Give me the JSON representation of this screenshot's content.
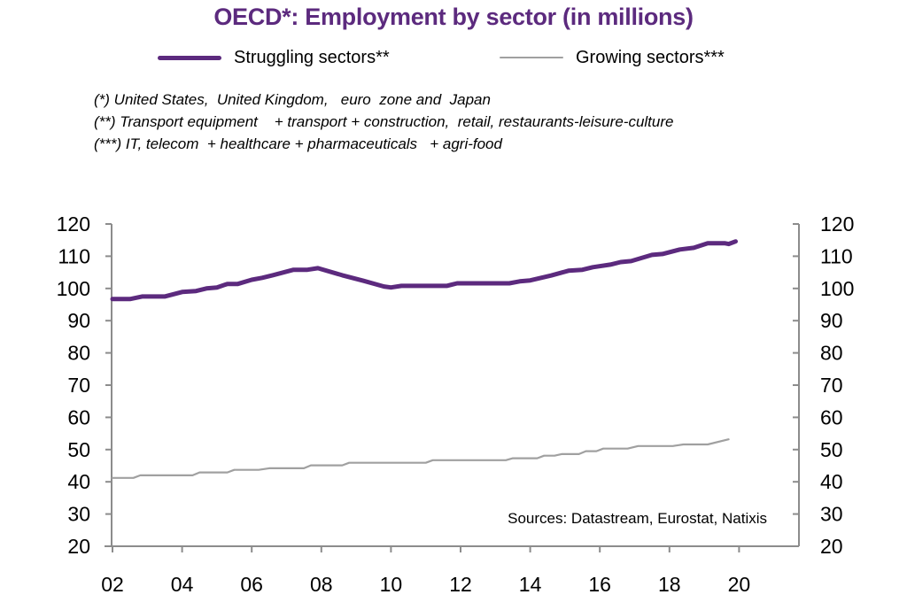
{
  "chart_data": {
    "type": "line",
    "title": "OECD*:  Employment by sector (in millions)",
    "xlabel": "",
    "ylabel": "",
    "ylabel_right": "",
    "xlim": [
      2002,
      2021.9
    ],
    "ylim": [
      20,
      120
    ],
    "yticks": [
      20,
      30,
      40,
      50,
      60,
      70,
      80,
      90,
      100,
      110,
      120
    ],
    "ytick_labels": [
      "20",
      "30",
      "40",
      "50",
      "60",
      "70",
      "80",
      "90",
      "100",
      "110",
      "120"
    ],
    "xticks": [
      2002,
      2004,
      2006,
      2008,
      2010,
      2012,
      2014,
      2016,
      2018,
      2020
    ],
    "xtick_labels": [
      "02",
      "04",
      "06",
      "08",
      "10",
      "12",
      "14",
      "16",
      "18",
      "20"
    ],
    "grid": false,
    "legend_position": "top-center",
    "series": [
      {
        "name": "Struggling sectors**",
        "color": "#5c2a7e",
        "x": [
          2002.0,
          2002.5,
          2002.85,
          2003.5,
          2004.0,
          2004.4,
          2004.7,
          2005.0,
          2005.3,
          2005.6,
          2006.0,
          2006.3,
          2006.6,
          2007.2,
          2007.6,
          2007.9,
          2008.6,
          2009.2,
          2009.8,
          2010.0,
          2010.3,
          2011.6,
          2011.9,
          2013.4,
          2013.7,
          2014.0,
          2014.6,
          2015.1,
          2015.5,
          2015.8,
          2016.3,
          2016.6,
          2016.9,
          2017.5,
          2017.8,
          2018.3,
          2018.7,
          2019.1,
          2019.6,
          2019.7,
          2019.9
        ],
        "values": [
          96.7,
          96.7,
          97.5,
          97.5,
          98.9,
          99.2,
          100.0,
          100.3,
          101.4,
          101.4,
          102.7,
          103.3,
          104.1,
          105.8,
          105.8,
          106.3,
          104.1,
          102.4,
          100.6,
          100.3,
          100.8,
          100.8,
          101.6,
          101.6,
          102.2,
          102.5,
          104.0,
          105.5,
          105.8,
          106.6,
          107.4,
          108.2,
          108.5,
          110.4,
          110.7,
          112.1,
          112.6,
          114.0,
          114.0,
          113.8,
          114.6
        ]
      },
      {
        "name": "Growing sectors***",
        "color": "#a0a0a0",
        "x": [
          2002.0,
          2002.6,
          2002.8,
          2004.3,
          2004.5,
          2005.3,
          2005.5,
          2006.2,
          2006.5,
          2007.5,
          2007.7,
          2008.6,
          2008.8,
          2011.0,
          2011.2,
          2013.3,
          2013.5,
          2014.2,
          2014.4,
          2014.7,
          2014.9,
          2015.4,
          2015.6,
          2015.9,
          2016.1,
          2016.8,
          2017.1,
          2018.1,
          2018.4,
          2019.1,
          2019.7
        ],
        "values": [
          41.2,
          41.2,
          42.0,
          42.0,
          42.9,
          42.9,
          43.7,
          43.7,
          44.2,
          44.2,
          45.1,
          45.1,
          45.9,
          45.9,
          46.7,
          46.7,
          47.3,
          47.3,
          48.1,
          48.1,
          48.6,
          48.6,
          49.5,
          49.5,
          50.3,
          50.3,
          51.1,
          51.1,
          51.6,
          51.6,
          53.2
        ]
      }
    ],
    "annotations": [
      "Sources: Datastream, Eurostat, Natixis"
    ]
  },
  "legend": [
    {
      "label": "Struggling sectors**",
      "color": "#5c2a7e"
    },
    {
      "label": "Growing sectors***",
      "color": "#a0a0a0"
    }
  ],
  "notes": [
    "(*) United States,  United Kingdom,   euro  zone and  Japan",
    "(**) Transport equipment    + transport + construction,  retail, restaurants-leisure-culture",
    "(***) IT, telecom  + healthcare + pharmaceuticals   + agri-food"
  ],
  "sources": "Sources:  Datastream,  Eurostat,  Natixis",
  "colors": {
    "title": "#5c2a7e",
    "axis": "#8c8c8c"
  }
}
